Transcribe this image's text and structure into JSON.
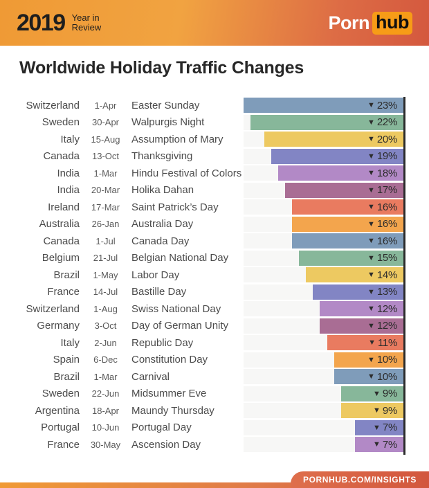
{
  "header": {
    "year": "2019",
    "subtitle_line1": "Year in",
    "subtitle_line2": "Review",
    "logo_porn": "Porn",
    "logo_hub": "hub"
  },
  "title": "Worldwide Holiday Traffic Changes",
  "footer": {
    "link": "PORNHUB.COM/INSIGHTS"
  },
  "palette": {
    "blue": "#7f9cba",
    "green": "#87b79a",
    "yellow": "#edc961",
    "indigo": "#8285c4",
    "orchid": "#b289c6",
    "plum": "#a96d94",
    "coral": "#e97b60",
    "orange": "#f3a54d"
  },
  "style_colors": {
    "track_bg": "#f7f7f6",
    "axis_line": "#2c2c2c",
    "label_text": "#4c4c4c",
    "percent_text": "#2c2c2c",
    "header_gradient_left": "#ef9a35",
    "header_gradient_right": "#d4583e",
    "logo_hub_bg": "#f79c17"
  },
  "chart_data": {
    "type": "bar",
    "orientation": "horizontal",
    "title": "Worldwide Holiday Traffic Changes",
    "xlabel": "",
    "ylabel": "",
    "xlim": [
      0,
      23
    ],
    "grid": false,
    "legend": false,
    "value_prefix": "▼",
    "value_suffix": "%",
    "value_meaning": "percent traffic decrease",
    "rows": [
      {
        "country": "Switzerland",
        "date": "1-Apr",
        "holiday": "Easter Sunday",
        "value": 23,
        "color": "blue"
      },
      {
        "country": "Sweden",
        "date": "30-Apr",
        "holiday": "Walpurgis Night",
        "value": 22,
        "color": "green"
      },
      {
        "country": "Italy",
        "date": "15-Aug",
        "holiday": "Assumption of Mary",
        "value": 20,
        "color": "yellow"
      },
      {
        "country": "Canada",
        "date": "13-Oct",
        "holiday": "Thanksgiving",
        "value": 19,
        "color": "indigo"
      },
      {
        "country": "India",
        "date": "1-Mar",
        "holiday": "Hindu Festival of Colors",
        "value": 18,
        "color": "orchid"
      },
      {
        "country": "India",
        "date": "20-Mar",
        "holiday": "Holika Dahan",
        "value": 17,
        "color": "plum"
      },
      {
        "country": "Ireland",
        "date": "17-Mar",
        "holiday": "Saint Patrick’s Day",
        "value": 16,
        "color": "coral"
      },
      {
        "country": "Australia",
        "date": "26-Jan",
        "holiday": "Australia Day",
        "value": 16,
        "color": "orange"
      },
      {
        "country": "Canada",
        "date": "1-Jul",
        "holiday": "Canada Day",
        "value": 16,
        "color": "blue"
      },
      {
        "country": "Belgium",
        "date": "21-Jul",
        "holiday": "Belgian National Day",
        "value": 15,
        "color": "green"
      },
      {
        "country": "Brazil",
        "date": "1-May",
        "holiday": "Labor Day",
        "value": 14,
        "color": "yellow"
      },
      {
        "country": "France",
        "date": "14-Jul",
        "holiday": "Bastille Day",
        "value": 13,
        "color": "indigo"
      },
      {
        "country": "Switzerland",
        "date": "1-Aug",
        "holiday": "Swiss National Day",
        "value": 12,
        "color": "orchid"
      },
      {
        "country": "Germany",
        "date": "3-Oct",
        "holiday": "Day of German Unity",
        "value": 12,
        "color": "plum"
      },
      {
        "country": "Italy",
        "date": "2-Jun",
        "holiday": "Republic Day",
        "value": 11,
        "color": "coral"
      },
      {
        "country": "Spain",
        "date": "6-Dec",
        "holiday": "Constitution Day",
        "value": 10,
        "color": "orange"
      },
      {
        "country": "Brazil",
        "date": "1-Mar",
        "holiday": "Carnival",
        "value": 10,
        "color": "blue"
      },
      {
        "country": "Sweden",
        "date": "22-Jun",
        "holiday": "Midsummer Eve",
        "value": 9,
        "color": "green"
      },
      {
        "country": "Argentina",
        "date": "18-Apr",
        "holiday": "Maundy Thursday",
        "value": 9,
        "color": "yellow"
      },
      {
        "country": "Portugal",
        "date": "10-Jun",
        "holiday": "Portugal Day",
        "value": 7,
        "color": "indigo"
      },
      {
        "country": "France",
        "date": "30-May",
        "holiday": "Ascension Day",
        "value": 7,
        "color": "orchid"
      }
    ]
  }
}
